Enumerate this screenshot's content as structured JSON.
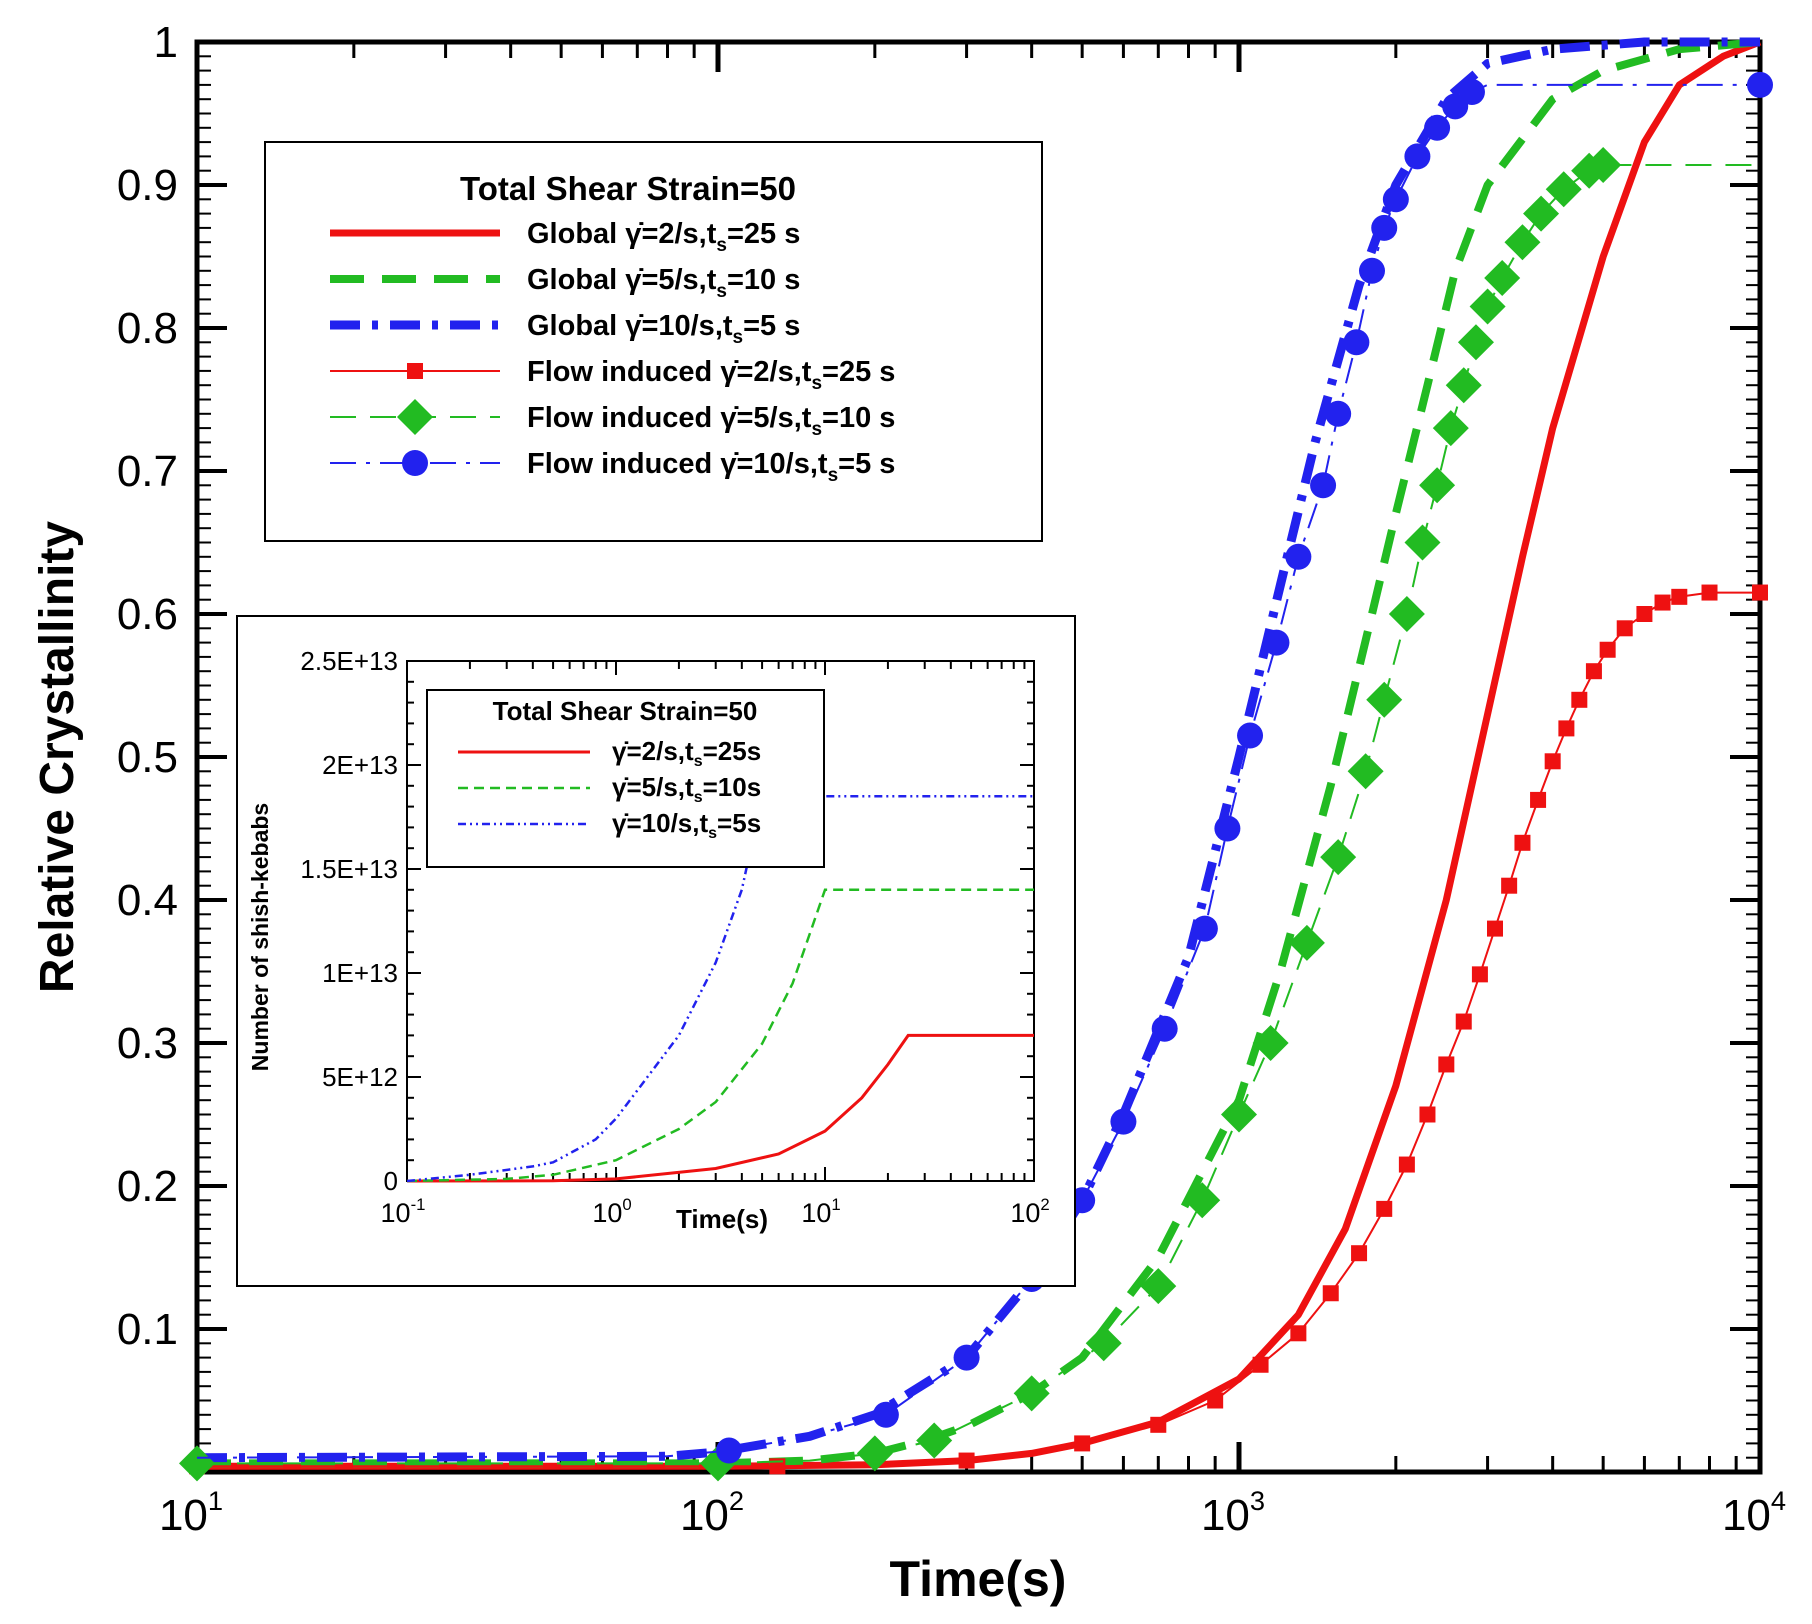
{
  "chart_data": [
    {
      "type": "line",
      "xscale": "log",
      "xlabel": "Time(s)",
      "ylabel": "Relative Crystallinity",
      "xlim": [
        10,
        10000
      ],
      "ylim": [
        0,
        1
      ],
      "x_ticks": [
        {
          "value": 10,
          "base": "10",
          "exp": "1"
        },
        {
          "value": 100,
          "base": "10",
          "exp": "2"
        },
        {
          "value": 1000,
          "base": "10",
          "exp": "3"
        },
        {
          "value": 10000,
          "base": "10",
          "exp": "4"
        }
      ],
      "y_ticks": [
        {
          "value": 0.1,
          "label": "0.1"
        },
        {
          "value": 0.2,
          "label": "0.2"
        },
        {
          "value": 0.3,
          "label": "0.3"
        },
        {
          "value": 0.4,
          "label": "0.4"
        },
        {
          "value": 0.5,
          "label": "0.5"
        },
        {
          "value": 0.6,
          "label": "0.6"
        },
        {
          "value": 0.7,
          "label": "0.7"
        },
        {
          "value": 0.8,
          "label": "0.8"
        },
        {
          "value": 0.9,
          "label": "0.9"
        },
        {
          "value": 1.0,
          "label": "1"
        }
      ],
      "legend": {
        "title": "Total Shear Strain=50",
        "placement": "upper-left",
        "entries": [
          {
            "prefix": "Global ",
            "rate": "=2/s,t",
            "sub": "s",
            "tail": "=25 s"
          },
          {
            "prefix": "Global ",
            "rate": "=5/s,t",
            "sub": "s",
            "tail": "=10 s"
          },
          {
            "prefix": "Global ",
            "rate": "=10/s,t",
            "sub": "s",
            "tail": "=5 s"
          },
          {
            "prefix": "Flow induced ",
            "rate": "=2/s,t",
            "sub": "s",
            "tail": "=25 s"
          },
          {
            "prefix": "Flow induced ",
            "rate": "=5/s,t",
            "sub": "s",
            "tail": "=10 s"
          },
          {
            "prefix": "Flow induced ",
            "rate": "=10/s,t",
            "sub": "s",
            "tail": "=5 s"
          }
        ]
      },
      "series": [
        {
          "name": "Global 2/s ts=25 s",
          "color": "#ee1111",
          "style": "solid",
          "marker": "none",
          "points": [
            [
              10,
              0.004
            ],
            [
              100,
              0.004
            ],
            [
              200,
              0.005
            ],
            [
              300,
              0.008
            ],
            [
              400,
              0.013
            ],
            [
              500,
              0.02
            ],
            [
              700,
              0.035
            ],
            [
              1000,
              0.065
            ],
            [
              1300,
              0.11
            ],
            [
              1600,
              0.17
            ],
            [
              2000,
              0.27
            ],
            [
              2500,
              0.4
            ],
            [
              3000,
              0.53
            ],
            [
              3500,
              0.64
            ],
            [
              4000,
              0.73
            ],
            [
              5000,
              0.85
            ],
            [
              6000,
              0.93
            ],
            [
              7000,
              0.97
            ],
            [
              8500,
              0.99
            ],
            [
              10000,
              1.0
            ]
          ]
        },
        {
          "name": "Global 5/s ts=10 s",
          "color": "#22bb22",
          "style": "dash",
          "marker": "none",
          "points": [
            [
              10,
              0.006
            ],
            [
              100,
              0.006
            ],
            [
              150,
              0.008
            ],
            [
              200,
              0.013
            ],
            [
              250,
              0.022
            ],
            [
              300,
              0.032
            ],
            [
              400,
              0.055
            ],
            [
              500,
              0.08
            ],
            [
              700,
              0.15
            ],
            [
              1000,
              0.26
            ],
            [
              1200,
              0.35
            ],
            [
              1500,
              0.48
            ],
            [
              1800,
              0.6
            ],
            [
              2000,
              0.67
            ],
            [
              2300,
              0.76
            ],
            [
              2600,
              0.84
            ],
            [
              3000,
              0.9
            ],
            [
              4000,
              0.96
            ],
            [
              5000,
              0.98
            ],
            [
              7000,
              0.995
            ],
            [
              10000,
              1.0
            ]
          ]
        },
        {
          "name": "Global 10/s ts=5 s",
          "color": "#2222ee",
          "style": "dashdot",
          "marker": "none",
          "points": [
            [
              10,
              0.01
            ],
            [
              80,
              0.011
            ],
            [
              100,
              0.014
            ],
            [
              150,
              0.025
            ],
            [
              200,
              0.04
            ],
            [
              300,
              0.08
            ],
            [
              400,
              0.135
            ],
            [
              500,
              0.19
            ],
            [
              600,
              0.25
            ],
            [
              800,
              0.36
            ],
            [
              1000,
              0.5
            ],
            [
              1200,
              0.62
            ],
            [
              1400,
              0.72
            ],
            [
              1700,
              0.83
            ],
            [
              2000,
              0.9
            ],
            [
              2500,
              0.96
            ],
            [
              3000,
              0.985
            ],
            [
              4000,
              0.995
            ],
            [
              6000,
              1.0
            ],
            [
              10000,
              1.0
            ]
          ]
        },
        {
          "name": "Flow induced 2/s ts=25 s",
          "color": "#ee1111",
          "style": "thin",
          "marker": "square",
          "points": [
            [
              10,
              0.004
            ],
            [
              130,
              0.004
            ],
            [
              200,
              0.005
            ],
            [
              300,
              0.008
            ],
            [
              400,
              0.013
            ],
            [
              500,
              0.02
            ],
            [
              700,
              0.033
            ],
            [
              900,
              0.05
            ],
            [
              1100,
              0.075
            ],
            [
              1300,
              0.097
            ],
            [
              1500,
              0.125
            ],
            [
              1700,
              0.153
            ],
            [
              1900,
              0.184
            ],
            [
              2100,
              0.215
            ],
            [
              2300,
              0.25
            ],
            [
              2500,
              0.285
            ],
            [
              2700,
              0.315
            ],
            [
              2900,
              0.348
            ],
            [
              3100,
              0.38
            ],
            [
              3300,
              0.41
            ],
            [
              3500,
              0.44
            ],
            [
              3750,
              0.47
            ],
            [
              4000,
              0.497
            ],
            [
              4250,
              0.52
            ],
            [
              4500,
              0.54
            ],
            [
              4800,
              0.56
            ],
            [
              5100,
              0.575
            ],
            [
              5500,
              0.59
            ],
            [
              6000,
              0.6
            ],
            [
              6500,
              0.608
            ],
            [
              7000,
              0.612
            ],
            [
              8000,
              0.615
            ],
            [
              10000,
              0.615
            ]
          ],
          "marker_x": [
            10,
            130,
            300,
            500,
            700,
            900,
            1100,
            1300,
            1500,
            1700,
            1900,
            2100,
            2300,
            2500,
            2700,
            2900,
            3100,
            3300,
            3500,
            3750,
            4000,
            4250,
            4500,
            4800,
            5100,
            5500,
            6000,
            6500,
            7000,
            8000,
            10000
          ]
        },
        {
          "name": "Flow induced 5/s ts=10 s",
          "color": "#22bb22",
          "style": "thindash",
          "marker": "diamond",
          "points": [
            [
              10,
              0.006
            ],
            [
              100,
              0.006
            ],
            [
              150,
              0.008
            ],
            [
              200,
              0.013
            ],
            [
              260,
              0.022
            ],
            [
              400,
              0.055
            ],
            [
              550,
              0.09
            ],
            [
              700,
              0.13
            ],
            [
              850,
              0.19
            ],
            [
              1000,
              0.25
            ],
            [
              1150,
              0.3
            ],
            [
              1350,
              0.37
            ],
            [
              1550,
              0.43
            ],
            [
              1750,
              0.49
            ],
            [
              1900,
              0.54
            ],
            [
              2100,
              0.6
            ],
            [
              2250,
              0.65
            ],
            [
              2400,
              0.69
            ],
            [
              2550,
              0.73
            ],
            [
              2700,
              0.76
            ],
            [
              2850,
              0.79
            ],
            [
              3000,
              0.815
            ],
            [
              3200,
              0.835
            ],
            [
              3500,
              0.86
            ],
            [
              3800,
              0.88
            ],
            [
              4200,
              0.897
            ],
            [
              4700,
              0.91
            ],
            [
              5000,
              0.914
            ],
            [
              10000,
              0.914
            ]
          ],
          "marker_x": [
            10,
            100,
            200,
            260,
            400,
            550,
            700,
            850,
            1000,
            1150,
            1350,
            1550,
            1750,
            1900,
            2100,
            2250,
            2400,
            2550,
            2700,
            2850,
            3000,
            3200,
            3500,
            3800,
            4200,
            4700,
            5000
          ]
        },
        {
          "name": "Flow induced 10/s ts=5 s",
          "color": "#2222ee",
          "style": "thindashdot",
          "marker": "circle",
          "points": [
            [
              10,
              0.01
            ],
            [
              80,
              0.011
            ],
            [
              105,
              0.015
            ],
            [
              150,
              0.025
            ],
            [
              210,
              0.04
            ],
            [
              300,
              0.08
            ],
            [
              400,
              0.135
            ],
            [
              500,
              0.19
            ],
            [
              600,
              0.245
            ],
            [
              720,
              0.31
            ],
            [
              860,
              0.38
            ],
            [
              950,
              0.45
            ],
            [
              1050,
              0.515
            ],
            [
              1180,
              0.58
            ],
            [
              1300,
              0.64
            ],
            [
              1450,
              0.69
            ],
            [
              1550,
              0.74
            ],
            [
              1680,
              0.79
            ],
            [
              1800,
              0.84
            ],
            [
              1900,
              0.87
            ],
            [
              2000,
              0.89
            ],
            [
              2200,
              0.92
            ],
            [
              2400,
              0.94
            ],
            [
              2600,
              0.955
            ],
            [
              2800,
              0.965
            ],
            [
              3000,
              0.97
            ],
            [
              10000,
              0.97
            ]
          ],
          "marker_x": [
            105,
            210,
            300,
            400,
            500,
            600,
            720,
            860,
            950,
            1050,
            1180,
            1300,
            1450,
            1550,
            1680,
            1800,
            1900,
            2000,
            2200,
            2400,
            2600,
            2800,
            10000
          ]
        }
      ]
    },
    {
      "type": "line",
      "title": "inset",
      "xscale": "log",
      "xlabel": "Time(s)",
      "ylabel": "Number of shish-kebabs",
      "xlim": [
        0.1,
        100
      ],
      "ylim": [
        0,
        25000000000000.0
      ],
      "x_ticks": [
        {
          "value": 0.1,
          "base": "10",
          "exp": "-1"
        },
        {
          "value": 1,
          "base": "10",
          "exp": "0"
        },
        {
          "value": 10,
          "base": "10",
          "exp": "1"
        },
        {
          "value": 100,
          "base": "10",
          "exp": "2"
        }
      ],
      "y_ticks": [
        {
          "value": 0,
          "label": "0"
        },
        {
          "value": 5000000000000.0,
          "label": "5E+12"
        },
        {
          "value": 10000000000000.0,
          "label": "1E+13"
        },
        {
          "value": 15000000000000.0,
          "label": "1.5E+13"
        },
        {
          "value": 20000000000000.0,
          "label": "2E+13"
        },
        {
          "value": 25000000000000.0,
          "label": "2.5E+13"
        }
      ],
      "legend": {
        "title": "Total Shear Strain=50",
        "placement": "upper-left",
        "entries": [
          {
            "rate": "=2/s,t",
            "sub": "s",
            "tail": "=25s"
          },
          {
            "rate": "=5/s,t",
            "sub": "s",
            "tail": "=10s"
          },
          {
            "rate": "=10/s,t",
            "sub": "s",
            "tail": "=5s"
          }
        ]
      },
      "series": [
        {
          "name": "2/s ts=25s",
          "color": "#ee1111",
          "style": "solid",
          "points": [
            [
              0.1,
              0
            ],
            [
              0.5,
              10000000000.0
            ],
            [
              1,
              100000000000.0
            ],
            [
              3,
              600000000000.0
            ],
            [
              6,
              1300000000000.0
            ],
            [
              10,
              2400000000000.0
            ],
            [
              15,
              4000000000000.0
            ],
            [
              20,
              5600000000000.0
            ],
            [
              25,
              7000000000000.0
            ],
            [
              100,
              7000000000000.0
            ]
          ]
        },
        {
          "name": "5/s ts=10s",
          "color": "#22bb22",
          "style": "dash",
          "points": [
            [
              0.1,
              0
            ],
            [
              0.3,
              100000000000.0
            ],
            [
              0.5,
              300000000000.0
            ],
            [
              1,
              1000000000000.0
            ],
            [
              2,
              2500000000000.0
            ],
            [
              3,
              3800000000000.0
            ],
            [
              5,
              6600000000000.0
            ],
            [
              7,
              9500000000000.0
            ],
            [
              10,
              14000000000000.0
            ],
            [
              100,
              14000000000000.0
            ]
          ]
        },
        {
          "name": "10/s ts=5s",
          "color": "#2222ee",
          "style": "dashdotdot",
          "points": [
            [
              0.1,
              0
            ],
            [
              0.2,
              300000000000.0
            ],
            [
              0.4,
              700000000000.0
            ],
            [
              0.5,
              900000000000.0
            ],
            [
              0.8,
              2000000000000.0
            ],
            [
              1,
              3000000000000.0
            ],
            [
              2,
              7000000000000.0
            ],
            [
              3,
              10500000000000.0
            ],
            [
              4,
              14000000000000.0
            ],
            [
              5,
              18500000000000.0
            ],
            [
              100,
              18500000000000.0
            ]
          ]
        }
      ]
    }
  ]
}
